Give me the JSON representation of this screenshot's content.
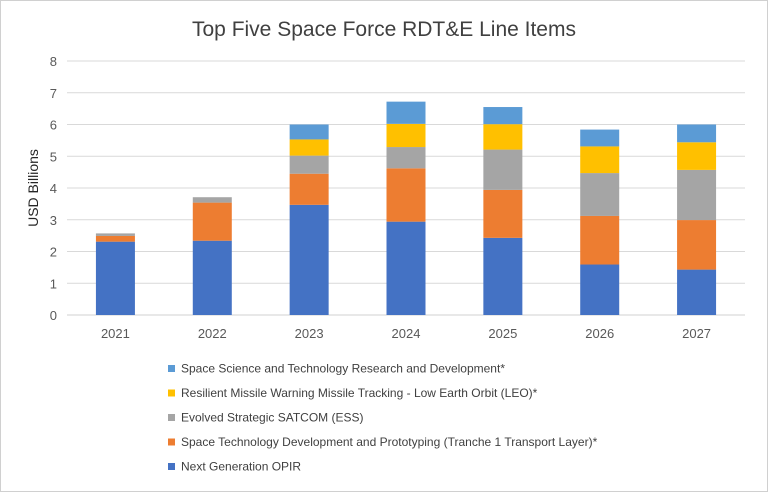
{
  "chart_data": {
    "type": "bar",
    "stacked": true,
    "title": "Top Five Space Force RDT&E Line Items",
    "xlabel": "",
    "ylabel": "USD Billions",
    "ylim": [
      0,
      8
    ],
    "yticks": [
      0,
      1,
      2,
      3,
      4,
      5,
      6,
      7,
      8
    ],
    "grid": true,
    "legend_position": "bottom",
    "categories": [
      "2021",
      "2022",
      "2023",
      "2024",
      "2025",
      "2026",
      "2027"
    ],
    "series": [
      {
        "name": "Next Generation OPIR",
        "color": "#4472C4",
        "values": [
          2.31,
          2.34,
          3.47,
          2.94,
          2.43,
          1.59,
          1.43
        ]
      },
      {
        "name": "Space Technology Development and Prototyping (Tranche 1 Transport Layer)*",
        "color": "#ED7D31",
        "values": [
          0.18,
          1.2,
          0.98,
          1.68,
          1.51,
          1.53,
          1.56
        ]
      },
      {
        "name": "Evolved Strategic SATCOM (ESS)",
        "color": "#A5A5A5",
        "values": [
          0.08,
          0.17,
          0.57,
          0.67,
          1.27,
          1.35,
          1.58
        ]
      },
      {
        "name": "Resilient Missile Warning Missile Tracking - Low Earth Orbit (LEO)*",
        "color": "#FFC000",
        "values": [
          0,
          0,
          0.51,
          0.73,
          0.8,
          0.84,
          0.87
        ]
      },
      {
        "name": "Space Science and Technology Research and Development*",
        "color": "#5B9BD5",
        "values": [
          0,
          0,
          0.47,
          0.7,
          0.54,
          0.53,
          0.56
        ]
      }
    ]
  }
}
